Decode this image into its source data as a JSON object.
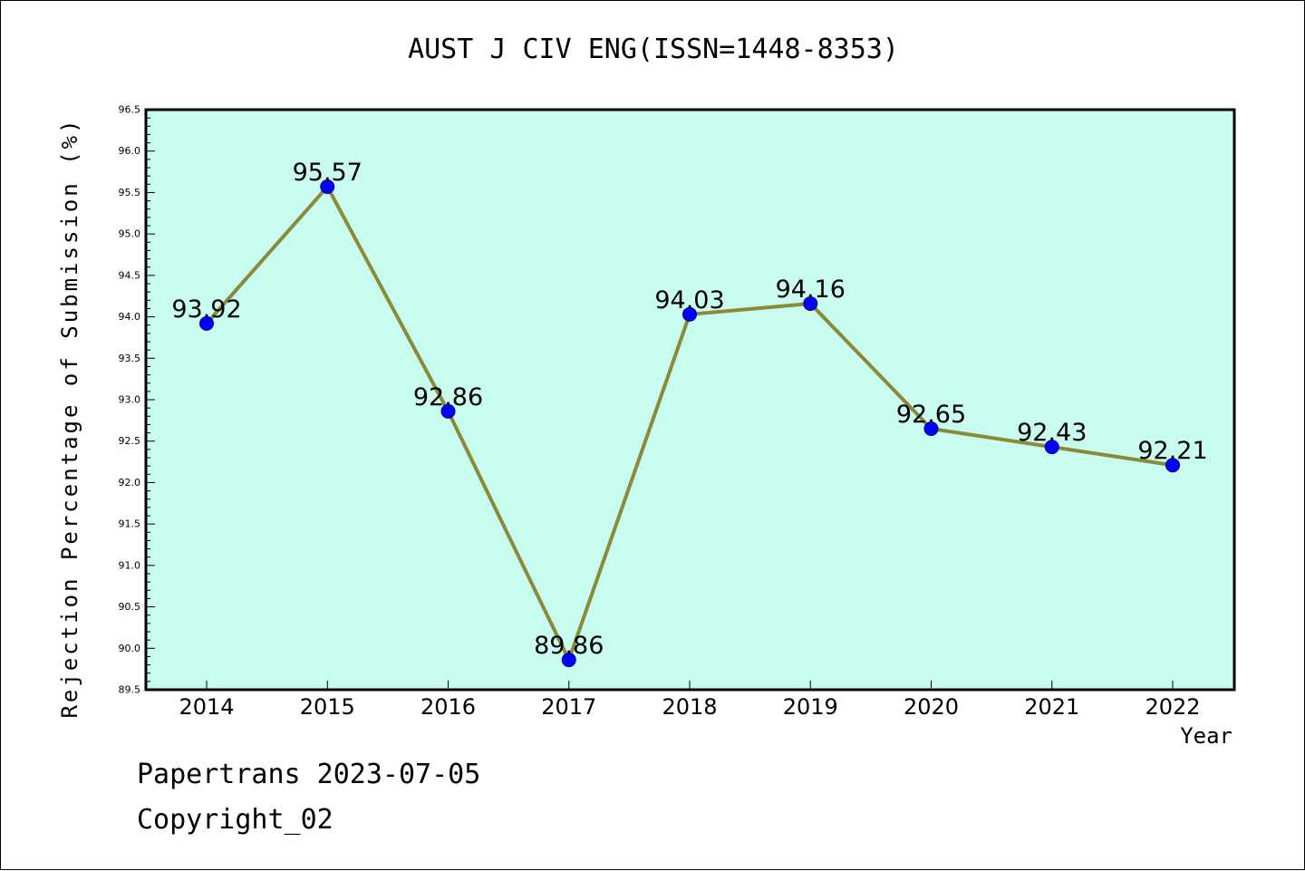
{
  "chart_data": {
    "type": "line",
    "title": "AUST J CIV ENG(ISSN=1448-8353)",
    "xlabel": "Year",
    "ylabel": "Rejection Percentage of Submission (%)",
    "categories": [
      "2014",
      "2015",
      "2016",
      "2017",
      "2018",
      "2019",
      "2020",
      "2021",
      "2022"
    ],
    "series": [
      {
        "values": [
          93.92,
          95.57,
          92.86,
          89.86,
          94.03,
          94.16,
          92.65,
          92.43,
          92.21
        ],
        "labels": [
          "93.92",
          "95.57",
          "92.86",
          "89.86",
          "94.03",
          "94.16",
          "92.65",
          "92.43",
          "92.21"
        ]
      }
    ],
    "ylim": [
      89.5,
      96.5
    ],
    "yticks": [
      "89.5",
      "90.0",
      "90.5",
      "91.0",
      "91.5",
      "92.0",
      "92.5",
      "93.0",
      "93.5",
      "94.0",
      "94.5",
      "95.0",
      "95.5",
      "96.0",
      "96.5"
    ],
    "grid": false,
    "colors": {
      "plot_background": "#c8fcee",
      "line": "#8b8a3a",
      "marker": "#0000ff",
      "marker_edge": "#00008b"
    }
  },
  "footer": {
    "line1": "Papertrans 2023-07-05",
    "line2": "Copyright_02"
  }
}
